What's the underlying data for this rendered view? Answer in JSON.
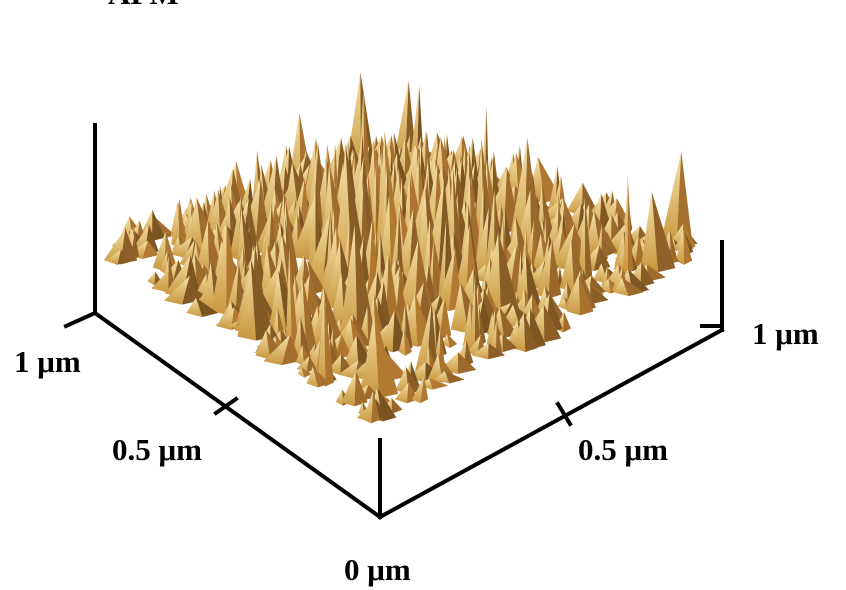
{
  "title": "AFM",
  "axis_labels": {
    "left_end": "1 μm",
    "left_mid": "0.5 μm",
    "origin": "0 μm",
    "right_mid": "0.5 μm",
    "right_end": "1 μm"
  }
}
